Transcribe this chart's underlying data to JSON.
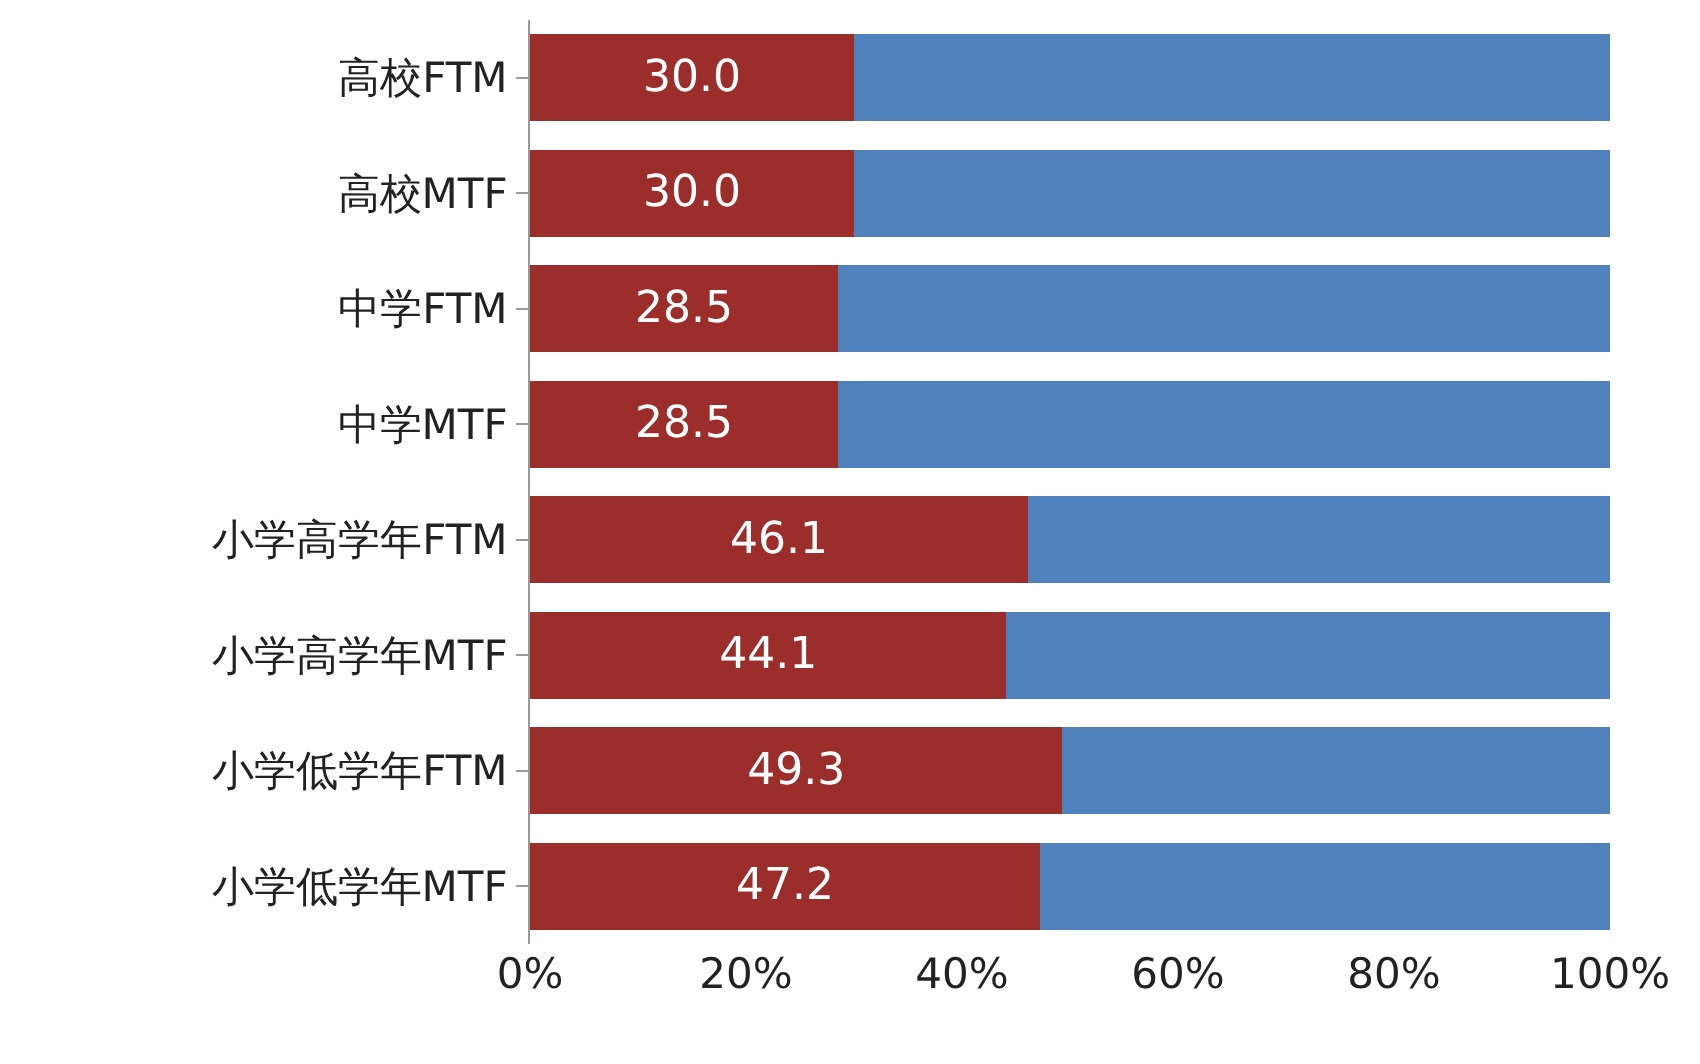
{
  "chart_data": {
    "type": "bar",
    "orientation": "horizontal",
    "stacked": true,
    "categories": [
      "高校FTM",
      "高校MTF",
      "中学FTM",
      "中学MTF",
      "小学高学年FTM",
      "小学高学年MTF",
      "小学低学年FTM",
      "小学低学年MTF"
    ],
    "series": [
      {
        "color": "#9b2d2b",
        "values": [
          30.0,
          30.0,
          28.5,
          28.5,
          46.1,
          44.1,
          49.3,
          47.2
        ],
        "value_labels": [
          "30.0",
          "30.0",
          "28.5",
          "28.5",
          "46.1",
          "44.1",
          "49.3",
          "47.2"
        ]
      },
      {
        "color": "#4f81bd",
        "values": [
          70.0,
          70.0,
          71.5,
          71.5,
          53.9,
          55.9,
          50.7,
          52.8
        ]
      }
    ],
    "xlim": [
      0,
      100
    ],
    "xticks": [
      {
        "value": 0,
        "label": "0%"
      },
      {
        "value": 20,
        "label": "20%"
      },
      {
        "value": 40,
        "label": "40%"
      },
      {
        "value": 60,
        "label": "60%"
      },
      {
        "value": 80,
        "label": "80%"
      },
      {
        "value": 100,
        "label": "100%"
      }
    ]
  }
}
